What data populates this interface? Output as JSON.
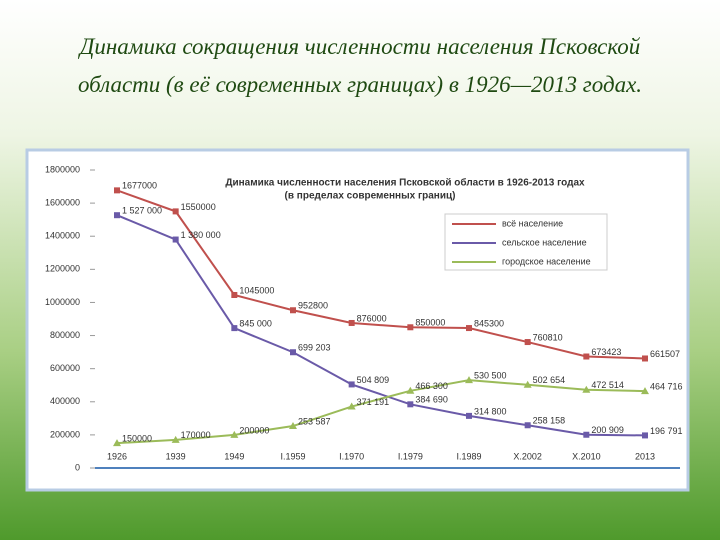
{
  "slide": {
    "title": "Динамика сокращения численности населения Псковской области (в её современных границах) в 1926—2013 годах."
  },
  "chart_data": {
    "type": "line",
    "title": "Динамика численности населения Псковской области в 1926-2013 годах",
    "subtitle": "(в пределах современных границ)",
    "categories": [
      "1926",
      "1939",
      "1949",
      "I.1959",
      "I.1970",
      "I.1979",
      "I.1989",
      "X.2002",
      "X.2010",
      "2013"
    ],
    "ylim": [
      0,
      1800000
    ],
    "yticks": [
      0,
      200000,
      400000,
      600000,
      800000,
      1000000,
      1200000,
      1400000,
      1600000,
      1800000
    ],
    "grid": false,
    "legend": "top-right",
    "series": [
      {
        "name": "всё население",
        "color": "#c0504d",
        "marker": "square",
        "values": [
          1677000,
          1550000,
          1045000,
          952800,
          876000,
          850000,
          845300,
          760810,
          673423,
          661507
        ]
      },
      {
        "name": "сельское население",
        "color": "#6a5aa8",
        "marker": "square",
        "values": [
          1527000,
          1380000,
          845000,
          699203,
          504809,
          384690,
          314800,
          258158,
          200909,
          196791
        ],
        "value_labels": [
          "1 527 000",
          "1 380 000",
          "845 000",
          "699 203",
          "504 809",
          "384 690",
          "314 800",
          "258 158",
          "200 909",
          "196 791"
        ]
      },
      {
        "name": "городское население",
        "color": "#9bbb59",
        "marker": "triangle",
        "values": [
          150000,
          170000,
          200000,
          253587,
          371191,
          466300,
          530500,
          502654,
          472514,
          464716
        ],
        "value_labels": [
          "150000",
          "170000",
          "200000",
          "253 587",
          "371 191",
          "466 300",
          "530 500",
          "502 654",
          "472 514",
          "464 716"
        ]
      }
    ]
  }
}
